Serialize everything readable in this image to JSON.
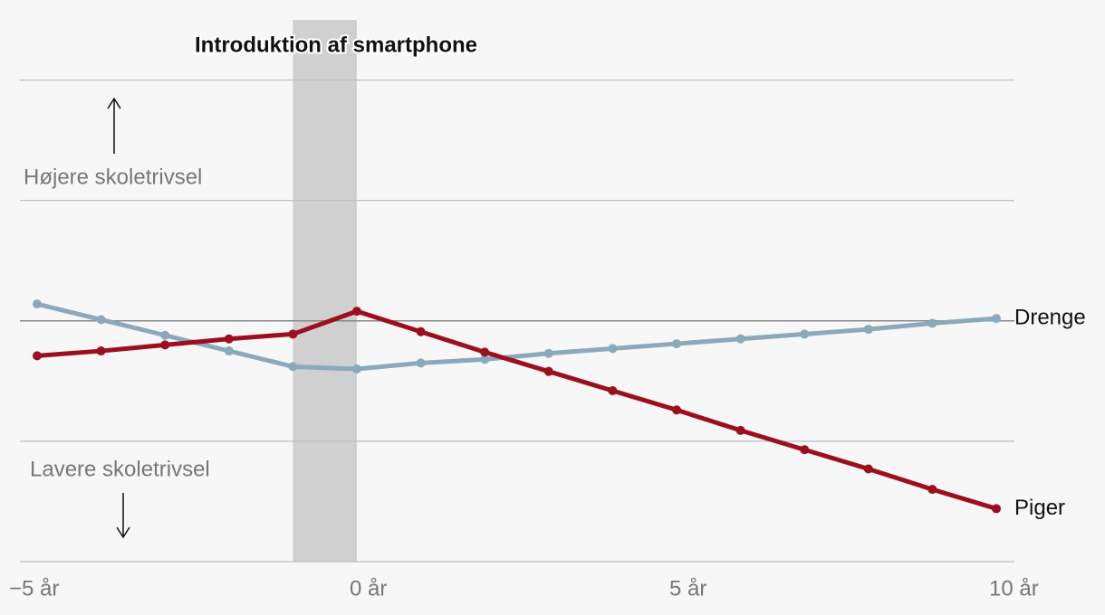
{
  "chart_data": {
    "type": "line",
    "title": "Introduktion af smartphone",
    "highlight": [
      -1,
      0
    ],
    "annotations": [
      "Højere skoletrivsel",
      "Lavere skoletrivsel"
    ],
    "x": [
      -5,
      -4,
      -3,
      -2,
      -1,
      0,
      1,
      2,
      3,
      4,
      5,
      6,
      7,
      8,
      9,
      10
    ],
    "series": [
      {
        "name": "Drenge",
        "color": "#8aa9bc",
        "values": [
          0.14,
          0.01,
          -0.12,
          -0.25,
          -0.38,
          -0.4,
          -0.35,
          -0.32,
          -0.27,
          -0.23,
          -0.19,
          -0.15,
          -0.11,
          -0.07,
          -0.02,
          0.02
        ]
      },
      {
        "name": "Piger",
        "color": "#9b0f1f",
        "values": [
          -0.29,
          -0.25,
          -0.2,
          -0.15,
          -0.11,
          0.08,
          -0.09,
          -0.26,
          -0.42,
          -0.58,
          -0.74,
          -0.91,
          -1.07,
          -1.23,
          -1.4,
          -1.56
        ]
      }
    ],
    "xlim": [
      -5,
      10
    ],
    "xticks": [
      {
        "value": -5,
        "label": "−5 år"
      },
      {
        "value": 0,
        "label": "0 år"
      },
      {
        "value": 5,
        "label": "5 år"
      },
      {
        "value": 10,
        "label": "10 år"
      }
    ],
    "ylim": [
      -2,
      2.5
    ],
    "yticks": [
      -2,
      -1,
      0,
      1,
      2
    ],
    "grid": true
  }
}
